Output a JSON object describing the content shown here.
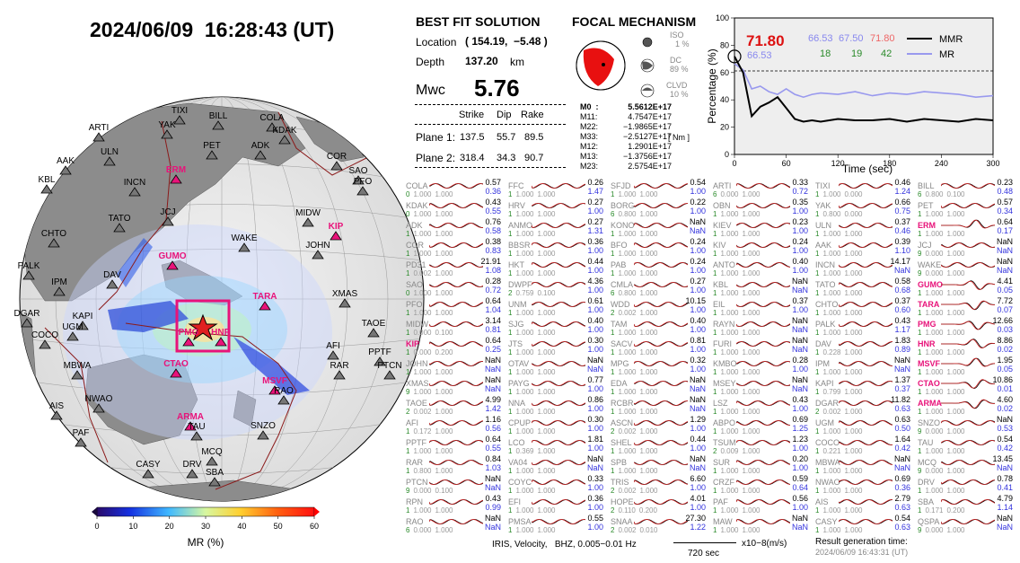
{
  "title": "2024/06/09  16:28:43 (UT)",
  "best_fit": {
    "header": "BEST FIT SOLUTION",
    "location_label": "Location",
    "location_value": "( 154.19,  −5.48 )",
    "depth_label": "Depth",
    "depth_value": "137.20",
    "depth_unit": "km",
    "mw_label": "Mwc",
    "mw_value": "5.76",
    "col_strike": "Strike",
    "col_dip": "Dip",
    "col_rake": "Rake",
    "plane1_label": "Plane 1:",
    "plane1": [
      "137.5",
      "55.7",
      "89.5"
    ],
    "plane2_label": "Plane 2:",
    "plane2": [
      "318.4",
      "34.3",
      "90.7"
    ]
  },
  "focal": {
    "header": "FOCAL MECHANISM",
    "iso_label": "ISO",
    "iso_value": "1  %",
    "dc_label": "DC",
    "dc_value": "89 %",
    "clvd_label": "CLVD",
    "clvd_value": "10 %",
    "tensor": [
      {
        "k": "M0  :",
        "v": "5.5612E+17"
      },
      {
        "k": "M11:",
        "v": "4.7547E+17"
      },
      {
        "k": "M22:",
        "v": "−1.9865E+17"
      },
      {
        "k": "M33:",
        "v": "−2.5127E+17"
      },
      {
        "k": "M12:",
        "v": "1.2901E+17"
      },
      {
        "k": "M13:",
        "v": "−1.3756E+17"
      },
      {
        "k": "M23:",
        "v": "2.5754E+17"
      }
    ],
    "unit": "[ Nm ]"
  },
  "mr_chart": {
    "ylabel": "Percentage (%)",
    "xlabel": "Time (sec)",
    "yticks": [
      "0",
      "20",
      "40",
      "60",
      "80",
      "100"
    ],
    "xticks": [
      "0",
      "60",
      "120",
      "180",
      "240",
      "300"
    ],
    "big_value": "71.80",
    "big_value_under": "66.53",
    "row1": [
      "66.53",
      "67.50",
      "71.80"
    ],
    "row2": [
      "18",
      "19",
      "42"
    ],
    "legend_mmr": "MMR",
    "legend_mr": "MR",
    "color_mmr": "#000000",
    "color_mr": "#9999ee"
  },
  "chart_data": {
    "type": "line",
    "x": [
      0,
      10,
      20,
      30,
      40,
      50,
      60,
      70,
      80,
      90,
      100,
      120,
      140,
      160,
      180,
      200,
      220,
      240,
      260,
      280,
      300
    ],
    "series": [
      {
        "name": "MMR",
        "values": [
          71.8,
          60,
          28,
          35,
          38,
          42,
          34,
          26,
          24,
          25,
          24,
          26,
          25,
          25,
          26,
          24,
          26,
          25,
          24,
          26,
          25
        ]
      },
      {
        "name": "MR",
        "values": [
          66.5,
          62,
          48,
          50,
          46,
          44,
          48,
          44,
          42,
          44,
          45,
          44,
          46,
          43,
          45,
          44,
          46,
          45,
          44,
          42,
          43
        ]
      }
    ],
    "xlabel": "Time (sec)",
    "ylabel": "Percentage (%)",
    "xlim": [
      0,
      300
    ],
    "ylim": [
      0,
      100
    ]
  },
  "colorbar": {
    "ticks": [
      "0",
      "10",
      "20",
      "30",
      "40",
      "50",
      "60"
    ],
    "label": "MR (%)"
  },
  "stations": [
    [
      "COLA",
      "0.57",
      "0.36",
      "0",
      "1.000",
      "1.000"
    ],
    [
      "FFC",
      "0.26",
      "1.47",
      "1",
      "1.000",
      "1.000"
    ],
    [
      "SFJD",
      "0.54",
      "1.00",
      "1",
      "1.000",
      "1.000"
    ],
    [
      "ARTI",
      "0.33",
      "0.72",
      "6",
      "0.000",
      "1.000"
    ],
    [
      "TIXI",
      "0.46",
      "1.24",
      "1",
      "1.000",
      "0.000"
    ],
    [
      "BILL",
      "0.23",
      "0.48",
      "6",
      "0.800",
      "0.100"
    ],
    [
      "KDAK",
      "0.43",
      "0.55",
      "0",
      "1.000",
      "1.000"
    ],
    [
      "HRV",
      "0.27",
      "1.00",
      "1",
      "1.000",
      "1.000"
    ],
    [
      "BORG",
      "0.22",
      "1.00",
      "6",
      "0.800",
      "1.000"
    ],
    [
      "OBN",
      "0.35",
      "1.00",
      "1",
      "1.000",
      "1.000"
    ],
    [
      "YAK",
      "0.66",
      "0.75",
      "1",
      "0.800",
      "0.000"
    ],
    [
      "PET",
      "0.57",
      "0.34",
      "1",
      "1.000",
      "1.000"
    ],
    [
      "ADK",
      "0.76",
      "0.58",
      "1",
      "1.000",
      "1.000"
    ],
    [
      "ANMO",
      "0.27",
      "1.31",
      "1",
      "1.000",
      "1.000"
    ],
    [
      "KONO",
      "NaN",
      "NaN",
      "1",
      "1.000",
      "1.000"
    ],
    [
      "KIEV",
      "0.23",
      "1.00",
      "1",
      "1.000",
      "1.000"
    ],
    [
      "ULN",
      "0.37",
      "0.46",
      "1",
      "1.000",
      "1.000"
    ],
    [
      "ERM",
      "0.64",
      "0.17",
      "1",
      "1.000",
      "1.000"
    ],
    [
      "COR",
      "0.38",
      "0.83",
      "1",
      "1.000",
      "1.000"
    ],
    [
      "BBSR",
      "0.36",
      "1.00",
      "1",
      "1.000",
      "1.000"
    ],
    [
      "BFO",
      "0.24",
      "1.00",
      "1",
      "1.000",
      "1.000"
    ],
    [
      "KIV",
      "0.24",
      "1.00",
      "1",
      "1.000",
      "1.000"
    ],
    [
      "AAK",
      "0.39",
      "1.10",
      "1",
      "1.000",
      "1.000"
    ],
    [
      "JCJ",
      "NaN",
      "NaN",
      "9",
      "0.000",
      "1.000"
    ],
    [
      "PD31",
      "21.91",
      "1.08",
      "1",
      "0.002",
      "1.000"
    ],
    [
      "HKT",
      "0.44",
      "1.00",
      "1",
      "1.000",
      "1.000"
    ],
    [
      "PAB",
      "0.24",
      "1.00",
      "1",
      "1.000",
      "1.000"
    ],
    [
      "ANTO",
      "0.40",
      "1.00",
      "1",
      "1.000",
      "1.000"
    ],
    [
      "INCN",
      "14.17",
      "NaN",
      "1",
      "1.000",
      "1.000"
    ],
    [
      "WAKE",
      "NaN",
      "NaN",
      "9",
      "0.000",
      "1.000"
    ],
    [
      "SAO",
      "0.28",
      "0.72",
      "0",
      "1.000",
      "1.000"
    ],
    [
      "DWPF",
      "4.36",
      "1.00",
      "2",
      "0.759",
      "0.100"
    ],
    [
      "CMLA",
      "0.27",
      "1.00",
      "6",
      "0.800",
      "1.000"
    ],
    [
      "KBL",
      "NaN",
      "NaN",
      "1",
      "1.000",
      "1.000"
    ],
    [
      "TATO",
      "0.58",
      "0.68",
      "1",
      "1.000",
      "1.000"
    ],
    [
      "GUMO",
      "4.41",
      "0.05",
      "1",
      "1.000",
      "1.000"
    ],
    [
      "PFO",
      "0.64",
      "1.04",
      "1",
      "1.000",
      "1.000"
    ],
    [
      "UNM",
      "0.61",
      "1.00",
      "1",
      "1.000",
      "1.000"
    ],
    [
      "WDD",
      "10.15",
      "1.00",
      "2",
      "0.002",
      "1.000"
    ],
    [
      "EIL",
      "0.37",
      "1.00",
      "1",
      "1.000",
      "1.000"
    ],
    [
      "CHTO",
      "0.37",
      "0.60",
      "1",
      "1.000",
      "1.000"
    ],
    [
      "TARA",
      "7.72",
      "0.07",
      "1",
      "1.000",
      "1.000"
    ],
    [
      "MIDW",
      "3.14",
      "0.81",
      "1",
      "0.000",
      "0.100"
    ],
    [
      "SJG",
      "0.40",
      "1.00",
      "1",
      "1.000",
      "1.000"
    ],
    [
      "TAM",
      "0.40",
      "1.00",
      "1",
      "1.000",
      "1.000"
    ],
    [
      "RAYN",
      "NaN",
      "NaN",
      "1",
      "1.000",
      "1.000"
    ],
    [
      "PALK",
      "0.43",
      "1.17",
      "1",
      "1.000",
      "1.000"
    ],
    [
      "PMG",
      "12.66",
      "0.03",
      "1",
      "1.000",
      "1.000"
    ],
    [
      "KIP",
      "0.64",
      "0.25",
      "1",
      "0.000",
      "0.200"
    ],
    [
      "JTS",
      "0.30",
      "1.00",
      "1",
      "1.000",
      "1.000"
    ],
    [
      "SACV",
      "0.81",
      "1.00",
      "1",
      "1.000",
      "1.000"
    ],
    [
      "FURI",
      "NaN",
      "NaN",
      "1",
      "1.000",
      "1.000"
    ],
    [
      "DAV",
      "1.83",
      "0.89",
      "1",
      "0.228",
      "1.000"
    ],
    [
      "HNR",
      "8.86",
      "0.02",
      "1",
      "1.000",
      "1.000"
    ],
    [
      "JOHN",
      "NaN",
      "NaN",
      "1",
      "1.000",
      "1.000"
    ],
    [
      "OTAV",
      "NaN",
      "NaN",
      "1",
      "1.000",
      "1.000"
    ],
    [
      "MPG",
      "0.32",
      "1.00",
      "1",
      "1.000",
      "1.000"
    ],
    [
      "KMBO",
      "0.28",
      "1.00",
      "1",
      "1.000",
      "1.000"
    ],
    [
      "IPM",
      "NaN",
      "NaN",
      "1",
      "1.000",
      "1.000"
    ],
    [
      "MSVF",
      "1.95",
      "0.05",
      "1",
      "1.000",
      "1.000"
    ],
    [
      "XMAS",
      "NaN",
      "NaN",
      "9",
      "1.000",
      "1.000"
    ],
    [
      "PAYG",
      "0.77",
      "1.00",
      "1",
      "1.000",
      "1.000"
    ],
    [
      "EDA",
      "NaN",
      "NaN",
      "1",
      "1.000",
      "1.000"
    ],
    [
      "MSEY",
      "NaN",
      "NaN",
      "1",
      "1.000",
      "1.000"
    ],
    [
      "KAPI",
      "1.37",
      "0.37",
      "1",
      "0.799",
      "1.000"
    ],
    [
      "CTAO",
      "10.86",
      "0.01",
      "1",
      "1.000",
      "1.000"
    ],
    [
      "TAOE",
      "4.99",
      "1.42",
      "2",
      "0.002",
      "1.000"
    ],
    [
      "NNA",
      "0.86",
      "1.00",
      "1",
      "1.000",
      "1.000"
    ],
    [
      "RCBR",
      "NaN",
      "NaN",
      "1",
      "1.000",
      "1.000"
    ],
    [
      "LSZ",
      "0.43",
      "1.00",
      "1",
      "1.000",
      "1.000"
    ],
    [
      "DGAR",
      "11.82",
      "0.63",
      "2",
      "0.002",
      "1.000"
    ],
    [
      "ARMA",
      "4.60",
      "0.02",
      "1",
      "1.000",
      "1.000"
    ],
    [
      "AFI",
      "1.16",
      "0.56",
      "1",
      "0.172",
      "1.000"
    ],
    [
      "CPUP",
      "0.30",
      "1.00",
      "1",
      "1.000",
      "1.000"
    ],
    [
      "ASCN",
      "1.29",
      "1.00",
      "2",
      "0.002",
      "1.000"
    ],
    [
      "ABPO",
      "0.69",
      "1.25",
      "1",
      "1.000",
      "1.000"
    ],
    [
      "UGM",
      "0.63",
      "0.50",
      "1",
      "1.000",
      "1.000"
    ],
    [
      "SNZO",
      "NaN",
      "0.53",
      "9",
      "0.000",
      "1.000"
    ],
    [
      "PPTF",
      "0.64",
      "0.55",
      "1",
      "1.000",
      "1.000"
    ],
    [
      "LCO",
      "1.81",
      "1.00",
      "1",
      "0.369",
      "1.000"
    ],
    [
      "SHEL",
      "0.44",
      "1.00",
      "1",
      "1.000",
      "1.000"
    ],
    [
      "TSUM",
      "1.23",
      "1.00",
      "2",
      "0.009",
      "1.000"
    ],
    [
      "COCO",
      "1.64",
      "0.42",
      "1",
      "0.221",
      "1.000"
    ],
    [
      "TAU",
      "0.54",
      "0.42",
      "1",
      "1.000",
      "1.000"
    ],
    [
      "RAR",
      "0.84",
      "1.03",
      "1",
      "0.800",
      "1.000"
    ],
    [
      "VA04",
      "NaN",
      "NaN",
      "1",
      "1.000",
      "1.000"
    ],
    [
      "SPB",
      "NaN",
      "NaN",
      "1",
      "1.000",
      "1.000"
    ],
    [
      "SUR",
      "0.20",
      "1.00",
      "1",
      "1.000",
      "1.000"
    ],
    [
      "MBWA",
      "NaN",
      "NaN",
      "1",
      "1.000",
      "1.000"
    ],
    [
      "MCQ",
      "13.45",
      "NaN",
      "9",
      "0.000",
      "1.000"
    ],
    [
      "PTCN",
      "NaN",
      "NaN",
      "9",
      "0.000",
      "0.100"
    ],
    [
      "COYC",
      "0.33",
      "1.00",
      "1",
      "1.000",
      "1.000"
    ],
    [
      "TRIS",
      "6.60",
      "1.00",
      "2",
      "0.002",
      "1.000"
    ],
    [
      "CRZF",
      "0.59",
      "0.64",
      "1",
      "1.000",
      "1.000"
    ],
    [
      "NWAO",
      "0.69",
      "0.36",
      "1",
      "1.000",
      "1.000"
    ],
    [
      "DRV",
      "0.78",
      "0.41",
      "1",
      "1.000",
      "1.000"
    ],
    [
      "RPN",
      "0.43",
      "0.99",
      "1",
      "1.000",
      "1.000"
    ],
    [
      "EFI",
      "0.36",
      "1.00",
      "1",
      "1.000",
      "1.000"
    ],
    [
      "HOPE",
      "4.01",
      "1.00",
      "2",
      "0.110",
      "0.200"
    ],
    [
      "PAF",
      "0.56",
      "1.00",
      "1",
      "1.000",
      "1.000"
    ],
    [
      "AIS",
      "2.79",
      "0.63",
      "1",
      "1.000",
      "1.000"
    ],
    [
      "SBA",
      "4.79",
      "1.14",
      "1",
      "0.171",
      "0.200"
    ],
    [
      "RAO",
      "NaN",
      "NaN",
      "6",
      "0.000",
      "1.000"
    ],
    [
      "PMSA",
      "0.55",
      "1.00",
      "1",
      "1.000",
      "1.000"
    ],
    [
      "SNAA",
      "27.30",
      "1.22",
      "2",
      "0.002",
      "0.010"
    ],
    [
      "MAW",
      "NaN",
      "NaN",
      "1",
      "1.000",
      "1.000"
    ],
    [
      "CASY",
      "0.54",
      "0.63",
      "1",
      "1.000",
      "1.000"
    ],
    [
      "QSPA",
      "NaN",
      "NaN",
      "9",
      "0.000",
      "1.000"
    ]
  ],
  "red_stations": [
    "ERM",
    "GUMO",
    "TARA",
    "PMG",
    "KIP",
    "HNR",
    "MSVF",
    "CTAO",
    "ARMA"
  ],
  "footer": {
    "band": "IRIS, Velocity,   BHZ, 0.005−0.01 Hz",
    "scale": "720 sec",
    "unit": "x10−8(m/s)",
    "result_label": "Result generation time:",
    "result_time": "2024/06/09 16:43:31 (UT)"
  },
  "map_labels": [
    "TIXI",
    "BILL",
    "YAK",
    "COLA",
    "KDAK",
    "ARTI",
    "PET",
    "ADK",
    "ULN",
    "AAK",
    "INCN",
    "ERM",
    "KBL",
    "COR",
    "SAO",
    "PFO",
    "CHTO",
    "TATO",
    "JCJ",
    "MIDW",
    "KIP",
    "WAKE",
    "JOHN",
    "GUMO",
    "PALK",
    "DAV",
    "IPM",
    "TARA",
    "XMAS",
    "DGAR",
    "KAPI",
    "UGM",
    "COCO",
    "PMG",
    "HNR",
    "TAOE",
    "AFI",
    "PPTF",
    "PTCN",
    "MSVF",
    "RAR",
    "MBWA",
    "CTAO",
    "NWAO",
    "ARMA",
    "RAO",
    "AIS",
    "TAU",
    "SNZO",
    "PAF",
    "MCQ",
    "CASY",
    "DRV",
    "SBA"
  ]
}
